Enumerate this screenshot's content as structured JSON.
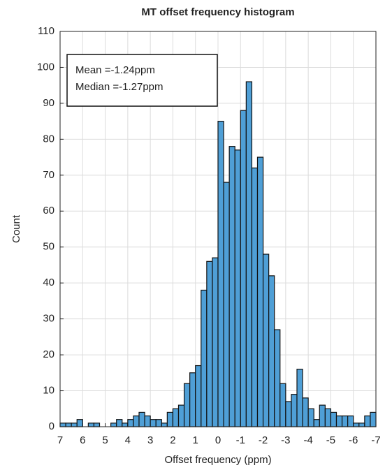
{
  "chart_data": {
    "type": "histogram",
    "title": "MT offset frequency histogram",
    "xlabel": "Offset frequency (ppm)",
    "ylabel": "Count",
    "annotations": [
      "Mean =-1.24ppm",
      "Median =-1.27ppm"
    ],
    "bins": [
      7,
      6.75,
      6.5,
      6.25,
      6,
      5.75,
      5.5,
      5.25,
      5,
      4.75,
      4.5,
      4.25,
      4,
      3.75,
      3.5,
      3.25,
      3,
      2.75,
      2.5,
      2.25,
      2,
      1.75,
      1.5,
      1.25,
      1,
      0.75,
      0.5,
      0.25,
      0,
      -0.25,
      -0.5,
      -0.75,
      -1,
      -1.25,
      -1.5,
      -1.75,
      -2,
      -2.25,
      -2.5,
      -2.75,
      -3,
      -3.25,
      -3.5,
      -3.75,
      -4,
      -4.25,
      -4.5,
      -4.75,
      -5,
      -5.25,
      -5.5,
      -5.75,
      -6,
      -6.25,
      -6.5,
      -6.75,
      -7
    ],
    "counts": [
      1,
      1,
      1,
      2,
      0,
      1,
      1,
      0,
      0,
      1,
      2,
      1,
      2,
      3,
      4,
      3,
      2,
      2,
      1,
      4,
      5,
      6,
      12,
      15,
      17,
      38,
      46,
      47,
      85,
      68,
      78,
      77,
      88,
      96,
      72,
      75,
      48,
      42,
      27,
      12,
      7,
      9,
      16,
      8,
      5,
      2,
      6,
      5,
      4,
      3,
      3,
      3,
      1,
      1,
      3,
      4
    ],
    "color": "#4f9fd6",
    "xlim": [
      7,
      -7
    ],
    "xticks": [
      7,
      6,
      5,
      4,
      3,
      2,
      1,
      0,
      -1,
      -2,
      -3,
      -4,
      -5,
      -6,
      -7
    ],
    "ylim": [
      0,
      110
    ],
    "yticks": [
      0,
      10,
      20,
      30,
      40,
      50,
      60,
      70,
      80,
      90,
      100,
      110
    ],
    "grid": true
  }
}
